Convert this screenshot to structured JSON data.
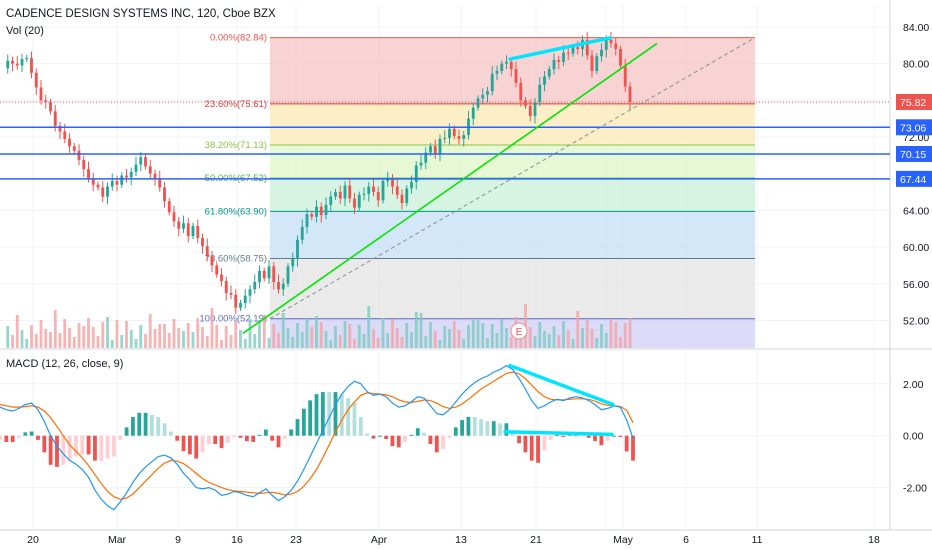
{
  "header": {
    "title": "CADENCE DESIGN SYSTEMS INC, 120, Cboe BZX",
    "volume_label": "Vol (20)",
    "macd_label": "MACD (12, 26, close, 9)"
  },
  "colors": {
    "up": "#26a69a",
    "down": "#ef5350",
    "macd_line": "#2196f3",
    "signal_line": "#ff6d00",
    "hline": "#2962ff",
    "trend_green": "#00e600",
    "divergence_cyan": "#00e5ff"
  },
  "chart_data": [
    {
      "type": "candlestick",
      "title": "CADENCE DESIGN SYSTEMS INC, 120, Cboe BZX",
      "x_ticks": [
        "20",
        "Mar",
        "9",
        "16",
        "23",
        "Apr",
        "13",
        "21",
        "27",
        "May",
        "6",
        "11",
        "18"
      ],
      "y_ticks": [
        "84.00",
        "80.00",
        "76.00",
        "72.00",
        "64.00",
        "60.00",
        "56.00",
        "52.00"
      ],
      "ylim": [
        49.0,
        86.5
      ],
      "grid": true,
      "price_labels": [
        {
          "value": 75.82,
          "text": "75.82",
          "color": "#ef5350"
        },
        {
          "value": 73.06,
          "text": "73.06",
          "color": "#2962ff"
        },
        {
          "value": 70.15,
          "text": "70.15",
          "color": "#2962ff"
        },
        {
          "value": 67.44,
          "text": "67.44",
          "color": "#2962ff"
        }
      ],
      "horizontal_lines": [
        73.06,
        70.15,
        67.44
      ],
      "fib_retracement": [
        {
          "label": "0.00%(82.84)",
          "value": 82.84,
          "line": "#ef5350",
          "fill": "#f4c4c4"
        },
        {
          "label": "23.60%(75.61)",
          "value": 75.61,
          "line": "#e53935",
          "fill": "#fbeab4"
        },
        {
          "label": "38.20%(71.13)",
          "value": 71.13,
          "line": "#8bc34a",
          "fill": "#def5c6"
        },
        {
          "label": "50.00%(67.52)",
          "value": 67.52,
          "line": "#4caf50",
          "fill": "#c9f0d8"
        },
        {
          "label": "61.80%(63.90)",
          "value": 63.9,
          "line": "#009688",
          "fill": "#c4dff5"
        },
        {
          "label": "78.60%(58.75)",
          "value": 58.75,
          "line": "#607d8b",
          "fill": "#e3e3e3"
        },
        {
          "label": "100.00%(52.19)",
          "value": 52.19,
          "line": "#5c6bc0",
          "fill": "#cfcff5"
        }
      ],
      "earnings_marker": "E",
      "price_path": [
        79.5,
        80.3,
        80.0,
        79.8,
        80.5,
        80.6,
        79.0,
        77.4,
        76.0,
        75.8,
        74.8,
        73.2,
        72.6,
        71.8,
        71.0,
        70.5,
        69.5,
        68.5,
        67.5,
        66.8,
        66.5,
        65.5,
        66.6,
        67.2,
        66.8,
        67.8,
        67.6,
        68.2,
        69.0,
        69.8,
        68.8,
        68.0,
        67.5,
        66.5,
        65.0,
        63.8,
        62.8,
        62.0,
        62.6,
        61.2,
        62.3,
        61.0,
        60.1,
        59.0,
        58.0,
        57.0,
        56.3,
        55.0,
        54.8,
        53.4,
        53.9,
        54.7,
        55.4,
        56.2,
        57.4,
        56.6,
        57.9,
        56.2,
        55.4,
        56.0,
        57.9,
        58.7,
        60.8,
        62.2,
        63.6,
        63.3,
        64.4,
        63.5,
        64.6,
        65.5,
        66.0,
        65.3,
        66.7,
        65.3,
        64.3,
        65.7,
        65.8,
        66.6,
        66.0,
        65.1,
        67.2,
        67.5,
        66.6,
        65.7,
        64.8,
        66.4,
        67.1,
        68.9,
        69.2,
        70.3,
        71.0,
        70.2,
        71.8,
        71.9,
        72.9,
        72.1,
        71.8,
        72.2,
        74.0,
        75.2,
        76.2,
        76.6,
        77.0,
        78.9,
        79.2,
        80.0,
        80.2,
        79.4,
        77.9,
        76.0,
        75.4,
        74.3,
        75.8,
        77.7,
        78.6,
        79.4,
        80.4,
        80.2,
        81.2,
        81.1,
        81.8,
        81.6,
        82.6,
        80.9,
        79.2,
        80.8,
        81.5,
        82.6,
        82.2,
        81.6,
        79.8,
        77.5,
        75.8
      ]
    },
    {
      "type": "macd",
      "title": "MACD (12, 26, close, 9)",
      "y_ticks": [
        "2.00",
        "0.00",
        "-2.00"
      ],
      "ylim": [
        -3.4,
        3.3
      ],
      "series": [
        {
          "name": "MACD",
          "values": [
            1.1,
            1.0,
            0.95,
            1.05,
            1.2,
            1.25,
            1.0,
            0.55,
            0.0,
            -0.4,
            -0.7,
            -0.95,
            -1.1,
            -1.3,
            -1.6,
            -2.1,
            -2.45,
            -2.7,
            -2.85,
            -2.55,
            -2.2,
            -1.8,
            -1.45,
            -1.2,
            -1.0,
            -0.8,
            -0.75,
            -0.85,
            -1.1,
            -1.45,
            -1.7,
            -2.0,
            -2.05,
            -2.0,
            -2.1,
            -2.3,
            -2.25,
            -2.15,
            -2.2,
            -2.3,
            -2.35,
            -2.2,
            -2.05,
            -2.3,
            -2.5,
            -2.35,
            -2.1,
            -1.75,
            -1.3,
            -0.8,
            -0.3,
            0.2,
            0.7,
            1.2,
            1.6,
            1.9,
            2.1,
            2.0,
            1.7,
            1.55,
            1.6,
            1.5,
            1.25,
            1.1,
            1.15,
            1.3,
            1.5,
            1.45,
            1.15,
            0.85,
            0.8,
            1.0,
            1.3,
            1.6,
            1.85,
            2.05,
            2.2,
            2.3,
            2.45,
            2.55,
            2.7,
            2.55,
            2.2,
            1.8,
            1.35,
            1.05,
            1.15,
            1.3,
            1.4,
            1.35,
            1.45,
            1.5,
            1.45,
            1.35,
            1.2,
            1.0,
            1.05,
            1.15,
            1.1,
            0.6,
            -0.1
          ]
        },
        {
          "name": "Signal",
          "values": [
            1.2,
            1.15,
            1.1,
            1.1,
            1.12,
            1.15,
            1.1,
            0.95,
            0.7,
            0.35,
            0.0,
            -0.35,
            -0.6,
            -0.85,
            -1.15,
            -1.5,
            -1.85,
            -2.15,
            -2.35,
            -2.45,
            -2.4,
            -2.25,
            -2.0,
            -1.75,
            -1.5,
            -1.25,
            -1.05,
            -0.95,
            -0.98,
            -1.08,
            -1.25,
            -1.45,
            -1.65,
            -1.8,
            -1.9,
            -2.0,
            -2.08,
            -2.12,
            -2.15,
            -2.17,
            -2.2,
            -2.22,
            -2.2,
            -2.18,
            -2.22,
            -2.28,
            -2.25,
            -2.15,
            -1.95,
            -1.65,
            -1.3,
            -0.85,
            -0.35,
            0.15,
            0.6,
            1.0,
            1.3,
            1.55,
            1.65,
            1.62,
            1.6,
            1.58,
            1.5,
            1.38,
            1.3,
            1.28,
            1.32,
            1.38,
            1.35,
            1.25,
            1.12,
            1.05,
            1.1,
            1.22,
            1.4,
            1.6,
            1.8,
            1.95,
            2.1,
            2.25,
            2.4,
            2.45,
            2.38,
            2.2,
            1.95,
            1.7,
            1.5,
            1.4,
            1.38,
            1.38,
            1.4,
            1.42,
            1.42,
            1.4,
            1.33,
            1.23,
            1.17,
            1.15,
            1.13,
            0.98,
            0.5
          ]
        }
      ],
      "histogram_note": "MACD minus Signal"
    }
  ]
}
